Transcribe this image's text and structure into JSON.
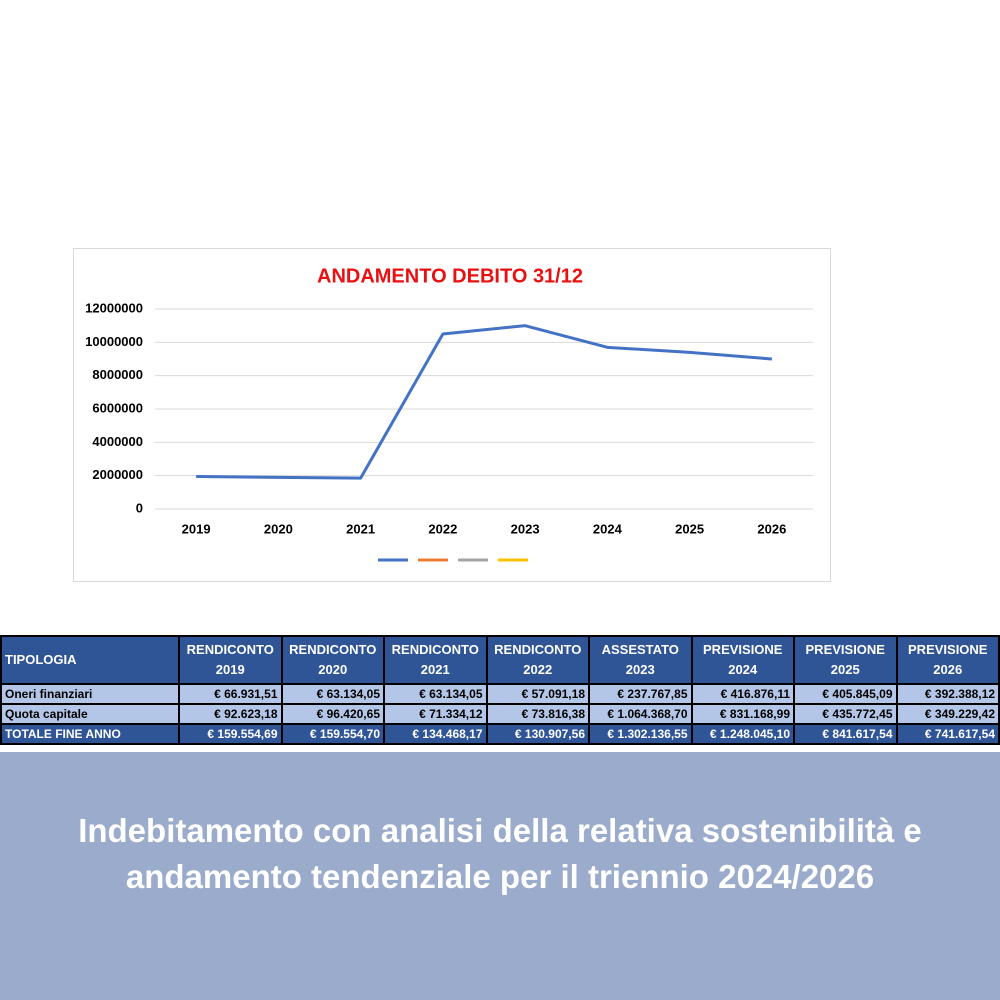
{
  "chart_data": {
    "type": "line",
    "title": "ANDAMENTO  DEBITO  31/12",
    "categories": [
      "2019",
      "2020",
      "2021",
      "2022",
      "2023",
      "2024",
      "2025",
      "2026"
    ],
    "series": [
      {
        "color": "#4472c4",
        "values": [
          1950000,
          1900000,
          1850000,
          10500000,
          11000000,
          9700000,
          9400000,
          9000000
        ]
      },
      {
        "color": "#ed7d31",
        "values": [
          null,
          null,
          null,
          null,
          null,
          null,
          null,
          null
        ]
      },
      {
        "color": "#a5a5a5",
        "values": [
          null,
          null,
          null,
          null,
          null,
          null,
          null,
          null
        ]
      },
      {
        "color": "#ffc000",
        "values": [
          null,
          null,
          null,
          null,
          null,
          null,
          null,
          null
        ]
      }
    ],
    "ylim": [
      0,
      12000000
    ],
    "yticks": [
      0,
      2000000,
      4000000,
      6000000,
      8000000,
      10000000,
      12000000
    ],
    "grid": true
  },
  "table": {
    "header": [
      "TIPOLOGIA",
      "RENDICONTO 2019",
      "RENDICONTO 2020",
      "RENDICONTO 2021",
      "RENDICONTO 2022",
      "ASSESTATO 2023",
      "PREVISIONE 2024",
      "PREVISIONE 2025",
      "PREVISIONE 2026"
    ],
    "rows": [
      [
        "Oneri finanziari",
        "€ 66.931,51",
        "€ 63.134,05",
        "€ 63.134,05",
        "€ 57.091,18",
        "€ 237.767,85",
        "€ 416.876,11",
        "€ 405.845,09",
        "€ 392.388,12"
      ],
      [
        "Quota capitale",
        "€ 92.623,18",
        "€ 96.420,65",
        "€ 71.334,12",
        "€ 73.816,38",
        "€ 1.064.368,70",
        "€ 831.168,99",
        "€ 435.772,45",
        "€ 349.229,42"
      ],
      [
        "TOTALE FINE ANNO",
        "€ 159.554,69",
        "€ 159.554,70",
        "€ 134.468,17",
        "€ 130.907,56",
        "€ 1.302.136,55",
        "€ 1.248.045,10",
        "€ 841.617,54",
        "€ 741.617,54"
      ]
    ]
  },
  "caption": "Indebitamento con analisi della relativa sostenibilità e andamento tendenziale per il triennio 2024/2026"
}
